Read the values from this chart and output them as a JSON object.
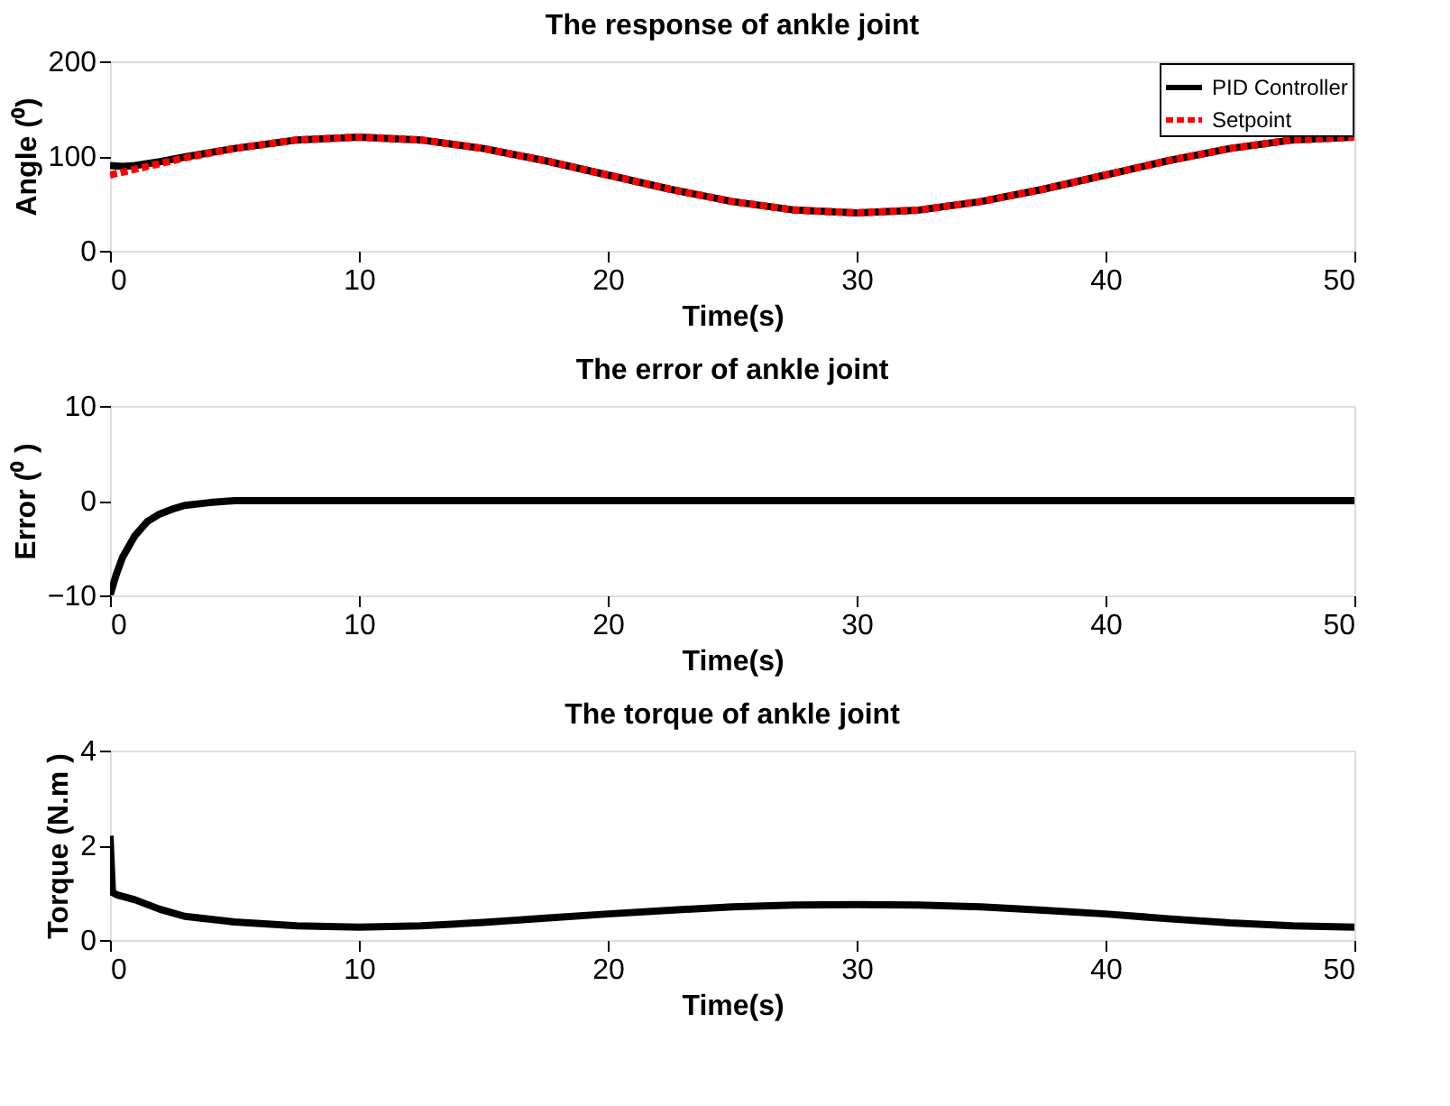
{
  "chart_data": [
    {
      "type": "line",
      "title": "The response of ankle joint",
      "xlabel": "Time(s)",
      "ylabel": "Angle (⁰)",
      "xlim": [
        0,
        50
      ],
      "xticks": [
        0,
        10,
        20,
        30,
        40,
        50
      ],
      "ylim": [
        0,
        200
      ],
      "yticks": [
        0,
        100,
        200
      ],
      "grid": false,
      "legend": "top right",
      "marker": "none",
      "series": [
        {
          "name": "PID Controller",
          "color": "#000000",
          "line_style": "solid",
          "x": [
            0,
            0.5,
            1,
            2,
            3,
            5,
            7.5,
            10,
            12.5,
            15,
            17.5,
            20,
            22.5,
            25,
            27.5,
            30,
            32.5,
            35,
            37.5,
            40,
            42.5,
            45,
            47.5,
            50
          ],
          "values": [
            90,
            89,
            90,
            94,
            99,
            108,
            117,
            120,
            117,
            108,
            95,
            80,
            65,
            52,
            43,
            40,
            43,
            52,
            65,
            80,
            95,
            108,
            117,
            120
          ]
        },
        {
          "name": "Setpoint",
          "color": "#ff0000",
          "line_style": "dashed",
          "x": [
            0,
            0.5,
            1,
            2,
            3,
            5,
            7.5,
            10,
            12.5,
            15,
            17.5,
            20,
            22.5,
            25,
            27.5,
            30,
            32.5,
            35,
            37.5,
            40,
            42.5,
            45,
            47.5,
            50
          ],
          "values": [
            80,
            83,
            86,
            92,
            98,
            108,
            117,
            120,
            117,
            108,
            95,
            80,
            65,
            52,
            43,
            40,
            43,
            52,
            65,
            80,
            95,
            108,
            117,
            120
          ]
        }
      ]
    },
    {
      "type": "line",
      "title": "The error of  ankle joint",
      "xlabel": "Time(s)",
      "ylabel": "Error  (⁰ )",
      "xlim": [
        0,
        50
      ],
      "xticks": [
        0,
        10,
        20,
        30,
        40,
        50
      ],
      "ylim": [
        -10,
        10
      ],
      "yticks": [
        -10,
        0,
        10
      ],
      "grid": false,
      "legend": false,
      "marker": "none",
      "series": [
        {
          "color": "#000000",
          "line_style": "solid",
          "x": [
            0,
            0.25,
            0.5,
            1,
            1.5,
            2,
            2.5,
            3,
            4,
            5,
            10,
            20,
            30,
            40,
            50
          ],
          "values": [
            -10,
            -7.8,
            -6,
            -3.7,
            -2.2,
            -1.4,
            -0.9,
            -0.5,
            -0.2,
            0,
            0,
            0,
            0,
            0,
            0
          ]
        }
      ]
    },
    {
      "type": "line",
      "title": "The torque of ankle joint",
      "xlabel": "Time(s)",
      "ylabel": "Torque  (N.m )",
      "xlim": [
        0,
        50
      ],
      "xticks": [
        0,
        10,
        20,
        30,
        40,
        50
      ],
      "ylim": [
        0,
        4
      ],
      "yticks": [
        0,
        2,
        4
      ],
      "grid": false,
      "legend": false,
      "marker": "none",
      "series": [
        {
          "color": "#000000",
          "line_style": "solid",
          "x": [
            0,
            0.1,
            0.3,
            1,
            2,
            3,
            5,
            7.5,
            10,
            12.5,
            15,
            17.5,
            20,
            22.5,
            25,
            27.5,
            30,
            32.5,
            35,
            37.5,
            40,
            42.5,
            45,
            47.5,
            50
          ],
          "values": [
            2.2,
            1.0,
            0.95,
            0.85,
            0.65,
            0.5,
            0.38,
            0.3,
            0.27,
            0.3,
            0.37,
            0.46,
            0.55,
            0.63,
            0.7,
            0.74,
            0.75,
            0.74,
            0.7,
            0.63,
            0.55,
            0.45,
            0.36,
            0.3,
            0.27
          ]
        }
      ]
    }
  ]
}
